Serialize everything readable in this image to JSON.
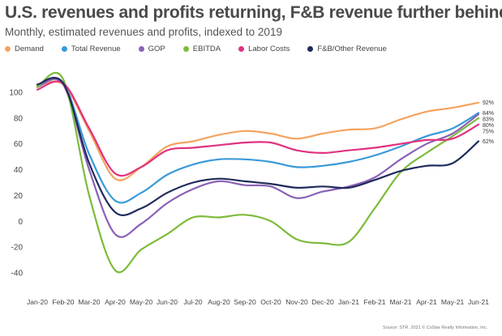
{
  "header": {
    "title": "U.S. revenues and profits returning, F&B revenue further behind",
    "subtitle": "Monthly, estimated revenues and profits, indexed to 2019"
  },
  "source": "Source: STR. 2021 © CoStar Realty Information, Inc.",
  "chart_data": {
    "type": "line",
    "title": "U.S. revenues and profits returning, F&B revenue further behind",
    "subtitle": "Monthly, estimated revenues and profits, indexed to 2019",
    "xlabel": "",
    "ylabel": "",
    "ylim": [
      -40,
      100
    ],
    "yticks": [
      100,
      80,
      60,
      40,
      20,
      0,
      -20,
      -40
    ],
    "grid": false,
    "legend_position": "top-left",
    "categories": [
      "Jan-20",
      "Feb-20",
      "Mar-20",
      "Apr-20",
      "May-20",
      "Jun-20",
      "Jul-20",
      "Aug-20",
      "Sep-20",
      "Oct-20",
      "Nov-20",
      "Dec-20",
      "Jan-21",
      "Feb-21",
      "Mar-21",
      "Apr-21",
      "May-21",
      "Jun-21"
    ],
    "series": [
      {
        "name": "Demand",
        "color": "#f4a460",
        "end_label": "92%",
        "values": [
          105,
          106,
          70,
          33,
          42,
          58,
          62,
          67,
          70,
          68,
          64,
          68,
          71,
          72,
          79,
          85,
          88,
          92
        ]
      },
      {
        "name": "Total Revenue",
        "color": "#3a9ad9",
        "end_label": "84%",
        "values": [
          104,
          107,
          52,
          16,
          22,
          36,
          44,
          48,
          48,
          46,
          42,
          43,
          46,
          51,
          58,
          66,
          72,
          84
        ]
      },
      {
        "name": "GOP",
        "color": "#8b61b5",
        "end_label": "83%",
        "values": [
          104,
          106,
          40,
          -10,
          -2,
          14,
          25,
          31,
          28,
          27,
          18,
          23,
          27,
          34,
          48,
          60,
          68,
          83
        ]
      },
      {
        "name": "EBITDA",
        "color": "#7dbb3a",
        "end_label": "80%",
        "values": [
          104,
          110,
          20,
          -38,
          -22,
          -10,
          3,
          3,
          5,
          0,
          -14,
          -17,
          -16,
          10,
          38,
          53,
          66,
          80
        ]
      },
      {
        "name": "Labor Costs",
        "color": "#e0327f",
        "end_label": "75%",
        "values": [
          102,
          107,
          72,
          37,
          42,
          55,
          57,
          59,
          61,
          61,
          55,
          53,
          55,
          57,
          60,
          63,
          64,
          75
        ]
      },
      {
        "name": "F&B/Other Revenue",
        "color": "#1f2a5c",
        "end_label": "62%",
        "values": [
          106,
          107,
          45,
          7,
          10,
          22,
          30,
          33,
          31,
          29,
          26,
          27,
          26,
          32,
          39,
          43,
          45,
          62
        ]
      }
    ]
  }
}
